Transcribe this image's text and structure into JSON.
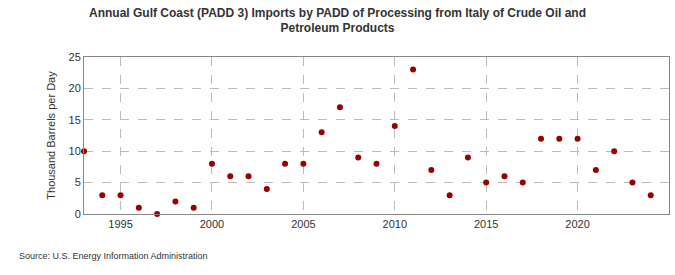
{
  "chart_data": {
    "type": "scatter",
    "title": "Annual Gulf Coast (PADD 3) Imports by PADD of Processing from Italy of Crude Oil and\nPetroleum Products",
    "y_label": "Thousand Barrels per Day",
    "annotations": [
      "Source: U.S. Energy Information Administration"
    ],
    "x": [
      1993,
      1994,
      1995,
      1996,
      1997,
      1998,
      1999,
      2000,
      2001,
      2002,
      2003,
      2004,
      2005,
      2006,
      2007,
      2008,
      2009,
      2010,
      2011,
      2012,
      2013,
      2014,
      2015,
      2016,
      2017,
      2018,
      2019,
      2020,
      2021,
      2022,
      2023,
      2024
    ],
    "values": [
      10,
      3,
      3,
      1,
      0,
      2,
      1,
      8,
      6,
      6,
      4,
      8,
      8,
      13,
      17,
      9,
      8,
      14,
      23,
      7,
      3,
      9,
      5,
      6,
      5,
      12,
      12,
      12,
      7,
      10,
      5,
      3
    ],
    "color": "#990000",
    "marker": "circle",
    "xlim": [
      1993,
      2025
    ],
    "xticks": [
      1995,
      2000,
      2005,
      2010,
      2015,
      2020
    ],
    "ylim": [
      0,
      25
    ],
    "yticks": [
      0,
      5,
      10,
      15,
      20,
      25
    ],
    "grid": true
  }
}
